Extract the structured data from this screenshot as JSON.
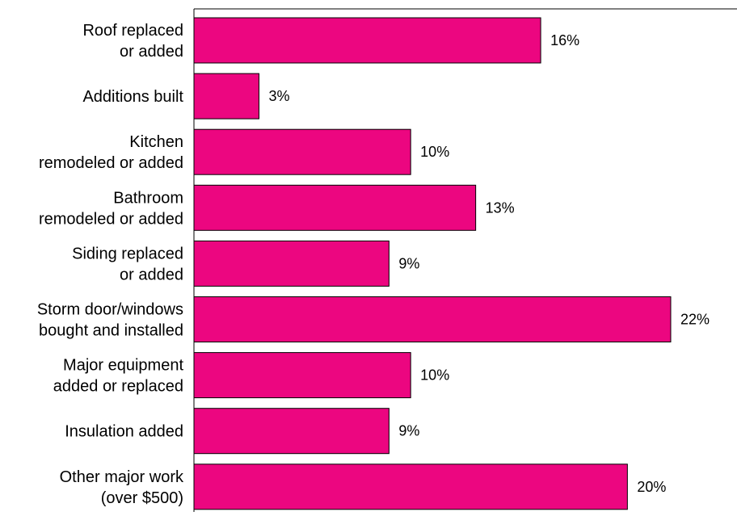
{
  "chart_data": {
    "type": "bar",
    "orientation": "horizontal",
    "categories": [
      [
        "Roof replaced",
        "or added"
      ],
      [
        "Additions built"
      ],
      [
        "Kitchen",
        "remodeled or added"
      ],
      [
        "Bathroom",
        "remodeled or added"
      ],
      [
        "Siding replaced",
        "or added"
      ],
      [
        "Storm door/windows",
        "bought and installed"
      ],
      [
        "Major equipment",
        "added or replaced"
      ],
      [
        "Insulation added"
      ],
      [
        "Other major work",
        "(over $500)"
      ]
    ],
    "values": [
      16,
      3,
      10,
      13,
      9,
      22,
      10,
      9,
      20
    ],
    "value_labels": [
      "16%",
      "3%",
      "10%",
      "13%",
      "9%",
      "22%",
      "10%",
      "9%",
      "20%"
    ],
    "value_unit": "%",
    "xlim": [
      0,
      25
    ],
    "bar_color": "#ec0680",
    "grid": false,
    "legend": "none"
  }
}
